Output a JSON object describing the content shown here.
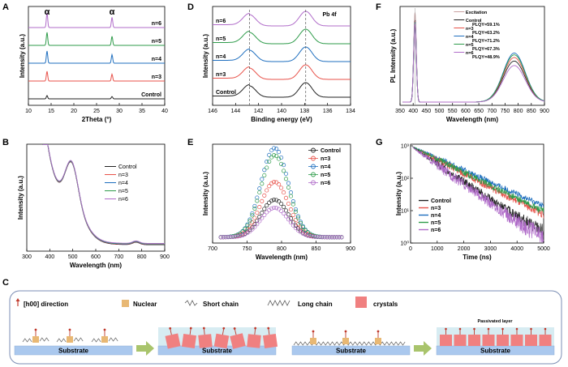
{
  "panel_letters": [
    "A",
    "B",
    "C",
    "D",
    "E",
    "F",
    "G"
  ],
  "colors": {
    "Control": "#222222",
    "n=3": "#e8524a",
    "n=4": "#1f6fbf",
    "n=5": "#2e9b4a",
    "n=6": "#b06cc9"
  },
  "chart_data": [
    {
      "id": "A",
      "type": "line",
      "xlabel": "2Theta (°)",
      "ylabel": "Intensity (a.u.)",
      "xlim": [
        10,
        40
      ],
      "xticks": [
        10,
        15,
        20,
        25,
        30,
        35,
        40
      ],
      "series_labels": [
        "n=6",
        "n=5",
        "n=4",
        "n=3",
        "Control"
      ],
      "peaks": [
        14.1,
        28.4
      ],
      "peak_label": "α"
    },
    {
      "id": "B",
      "type": "line",
      "xlabel": "Wavelength (nm)",
      "ylabel": "Intensity (a.u.)",
      "xlim": [
        300,
        900
      ],
      "xticks": [
        300,
        400,
        500,
        600,
        700,
        800,
        900
      ],
      "series": [
        {
          "name": "Control"
        },
        {
          "name": "n=3"
        },
        {
          "name": "n=4"
        },
        {
          "name": "n=5"
        },
        {
          "name": "n=6"
        }
      ]
    },
    {
      "id": "D",
      "type": "line",
      "xlabel": "Binding energy (eV)",
      "ylabel": "Intensity (a.u.)",
      "xlim": [
        146,
        134
      ],
      "xticks": [
        146,
        144,
        142,
        140,
        138,
        136,
        134
      ],
      "title": "Pb 4f",
      "series_labels": [
        "n=6",
        "n=5",
        "n=4",
        "n=3",
        "Control"
      ],
      "peaks": [
        142.8,
        137.9
      ]
    },
    {
      "id": "E",
      "type": "scatter",
      "xlabel": "Wavelength (nm)",
      "ylabel": "Intensity (a.u.)",
      "xlim": [
        700,
        900
      ],
      "xticks": [
        700,
        750,
        800,
        850,
        900
      ],
      "peak": 790,
      "series": [
        {
          "name": "Control",
          "peak": 0.42
        },
        {
          "name": "n=3",
          "peak": 0.62
        },
        {
          "name": "n=4",
          "peak": 1.0
        },
        {
          "name": "n=5",
          "peak": 0.92
        },
        {
          "name": "n=6",
          "peak": 0.33
        }
      ]
    },
    {
      "id": "F",
      "type": "line",
      "xlabel": "Wavelength (nm)",
      "ylabel": "PL Intensity (a.u.)",
      "xlim": [
        350,
        900
      ],
      "xticks": [
        350,
        400,
        450,
        500,
        550,
        600,
        650,
        700,
        750,
        800,
        850,
        900
      ],
      "series": [
        {
          "name": "Excitation"
        },
        {
          "name": "Control",
          "plqy": "PLQY=59.1%"
        },
        {
          "name": "n=3",
          "plqy": "PLQY=63.2%"
        },
        {
          "name": "n=4",
          "plqy": "PLQY=71.2%"
        },
        {
          "name": "n=5",
          "plqy": "PLQY=67.3%"
        },
        {
          "name": "n=6",
          "plqy": "PLQY=48.9%"
        }
      ]
    },
    {
      "id": "G",
      "type": "line",
      "xlabel": "Time (ns)",
      "ylabel": "Intensity (a.u.)",
      "xlim": [
        0,
        5000
      ],
      "xticks": [
        0,
        1000,
        2000,
        3000,
        4000,
        5000
      ],
      "yscale": "log",
      "yticks": [
        "10⁰",
        "10¹",
        "10²",
        "10³"
      ],
      "series": [
        {
          "name": "Control"
        },
        {
          "name": "n=3"
        },
        {
          "name": "n=4"
        },
        {
          "name": "n=5"
        },
        {
          "name": "n=6"
        }
      ]
    }
  ],
  "schematic": {
    "legend": [
      "[h00] direction",
      "Nuclear",
      "Short chain",
      "Long chain",
      "crystals"
    ],
    "substrate": "Substrate",
    "passivated": "Passivated layer"
  }
}
